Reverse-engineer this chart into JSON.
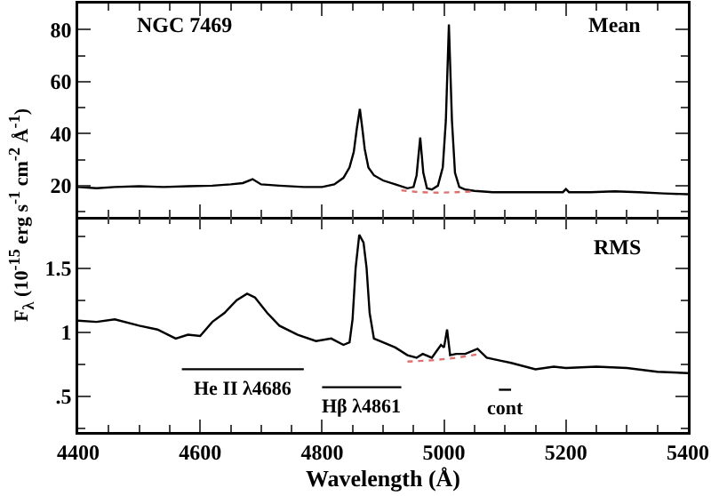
{
  "chart_data": [
    {
      "type": "line",
      "title": "NGC 7469",
      "annotations": [
        "Mean"
      ],
      "ylabel": "F$_{λ}$ (10$^{-15}$ erg s$^{-1}$ cm$^{-2}$ Å$^{-1}$)",
      "xlim": [
        4400,
        5400
      ],
      "xticks": [
        4400,
        4600,
        4800,
        5000,
        5200,
        5400
      ],
      "ylim": [
        8,
        90
      ],
      "yticks": [
        20,
        40,
        60,
        80
      ],
      "tick_labels": "y",
      "series": [
        {
          "color": "#000000",
          "x": [
            4400,
            4430,
            4460,
            4500,
            4540,
            4580,
            4620,
            4650,
            4670,
            4686,
            4700,
            4730,
            4770,
            4800,
            4820,
            4835,
            4845,
            4852,
            4857,
            4862,
            4866,
            4870,
            4876,
            4885,
            4900,
            4920,
            4940,
            4950,
            4955,
            4961,
            4966,
            4972,
            4980,
            4990,
            4998,
            5003,
            5008,
            5013,
            5018,
            5025,
            5035,
            5050,
            5080,
            5120,
            5160,
            5195,
            5200,
            5205,
            5240,
            5280,
            5320,
            5360,
            5400
          ],
          "values": [
            19.5,
            19,
            19.5,
            19.8,
            19.5,
            19.8,
            20,
            20.5,
            21,
            22.5,
            20.5,
            20,
            19.5,
            19.5,
            20.5,
            23,
            27,
            33,
            42,
            49.5,
            42,
            34,
            27,
            24,
            22,
            20.5,
            19,
            19.5,
            24,
            38.5,
            25,
            19,
            18.5,
            20,
            27,
            45,
            82,
            45,
            25,
            19.5,
            18.5,
            18,
            17.5,
            17.5,
            17.5,
            17.5,
            18.7,
            17.5,
            17.5,
            17.8,
            17.5,
            17,
            16.7
          ]
        },
        {
          "color": "#e07070",
          "line_style": "dotted",
          "x": [
            4930,
            4960,
            4990,
            5020,
            5050
          ],
          "values": [
            18.2,
            17.5,
            17.3,
            17.5,
            17.8
          ]
        }
      ]
    },
    {
      "type": "line",
      "annotations": [
        "RMS",
        {
          "text": "He II λ4686",
          "x": 4670,
          "y": 0.71
        },
        {
          "text": "Hβ λ4861",
          "x": 4865,
          "y": 0.57
        },
        {
          "text": "cont",
          "x": 5100,
          "y": 0.55
        }
      ],
      "xlabel": "Wavelength (Å)",
      "xlim": [
        4400,
        5400
      ],
      "xticks": [
        4400,
        4600,
        4800,
        5000,
        5200,
        5400
      ],
      "ylim": [
        0.22,
        1.9
      ],
      "yticks": [
        {
          "value": 0.5,
          "label": ".5"
        },
        1,
        1.5
      ],
      "series": [
        {
          "color": "#000000",
          "x": [
            4400,
            4430,
            4460,
            4500,
            4530,
            4560,
            4580,
            4600,
            4620,
            4640,
            4660,
            4677,
            4690,
            4710,
            4730,
            4760,
            4790,
            4815,
            4835,
            4845,
            4850,
            4855,
            4861,
            4868,
            4873,
            4878,
            4885,
            4900,
            4920,
            4940,
            4955,
            4965,
            4980,
            4995,
            5000,
            5005,
            5010,
            5020,
            5035,
            5055,
            5070,
            5090,
            5110,
            5150,
            5180,
            5200,
            5250,
            5300,
            5350,
            5400
          ],
          "values": [
            1.09,
            1.08,
            1.1,
            1.05,
            1.02,
            0.95,
            0.98,
            0.97,
            1.08,
            1.15,
            1.25,
            1.3,
            1.27,
            1.15,
            1.05,
            0.98,
            0.93,
            0.95,
            0.9,
            0.92,
            1.1,
            1.5,
            1.76,
            1.7,
            1.5,
            1.15,
            0.95,
            0.92,
            0.88,
            0.82,
            0.8,
            0.83,
            0.8,
            0.9,
            0.88,
            1.02,
            0.82,
            0.83,
            0.83,
            0.87,
            0.8,
            0.78,
            0.76,
            0.71,
            0.73,
            0.72,
            0.73,
            0.72,
            0.69,
            0.68
          ]
        },
        {
          "color": "#e07070",
          "line_style": "dotted",
          "x": [
            4940,
            4980,
            5020,
            5060
          ],
          "values": [
            0.77,
            0.78,
            0.8,
            0.83
          ]
        },
        {
          "color": "#000000",
          "x": [
            4570,
            4770
          ],
          "values": [
            0.71,
            0.71
          ]
        },
        {
          "color": "#000000",
          "x": [
            4800,
            4930
          ],
          "values": [
            0.57,
            0.57
          ]
        },
        {
          "color": "#000000",
          "x": [
            5090,
            5110
          ],
          "values": [
            0.55,
            0.55
          ]
        }
      ]
    }
  ]
}
